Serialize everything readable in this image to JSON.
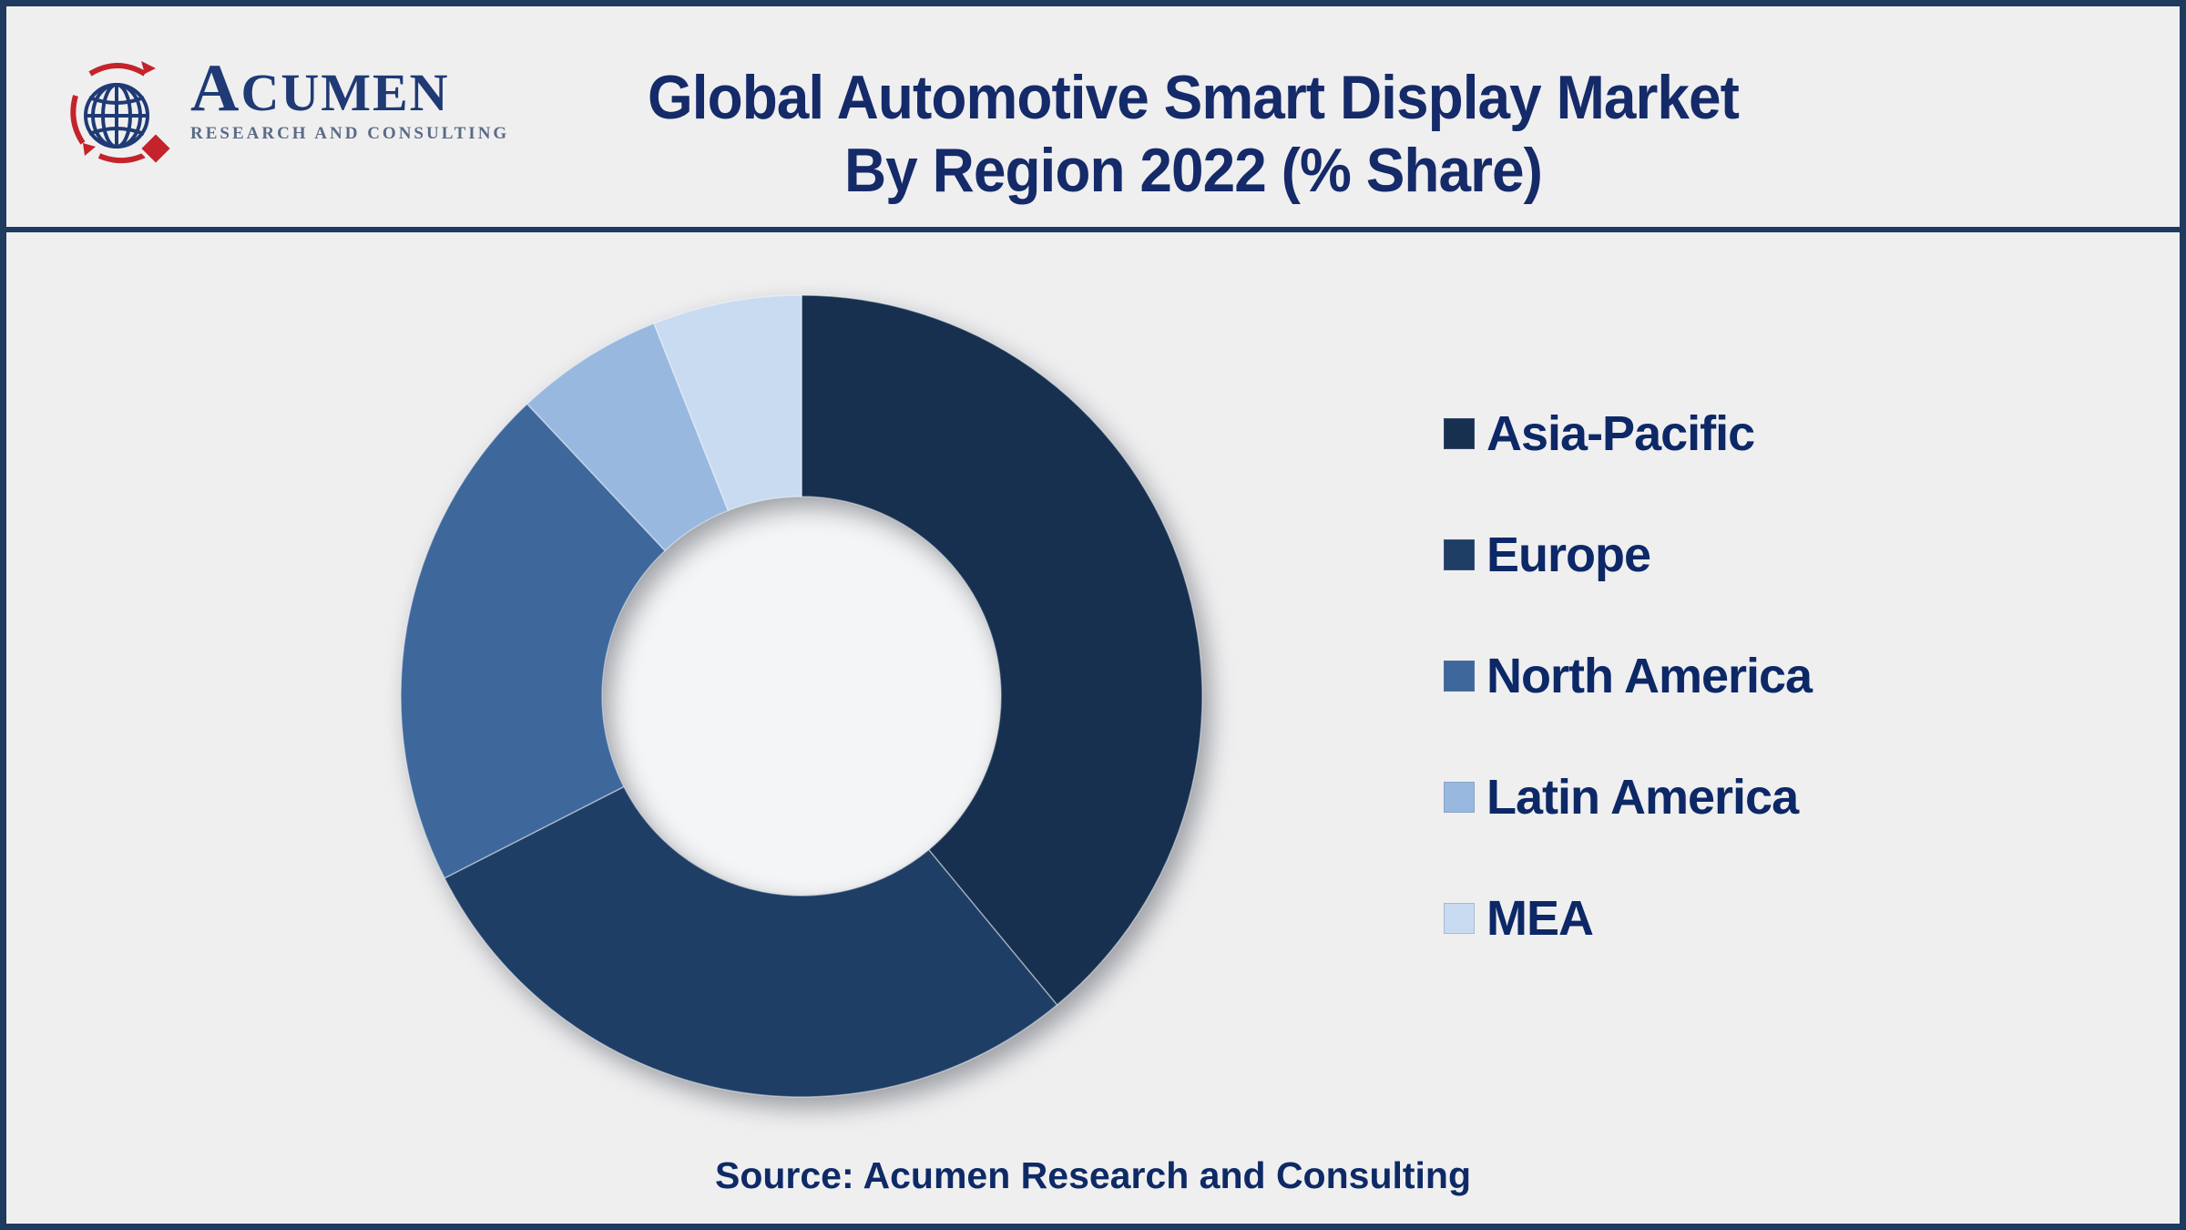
{
  "header": {
    "logo": {
      "brand": "ACUMEN",
      "tagline": "RESEARCH AND CONSULTING"
    },
    "title_line1": "Global Automotive Smart Display Market",
    "title_line2": "By Region 2022 (% Share)"
  },
  "footer": {
    "source": "Source: Acumen Research and Consulting"
  },
  "chart_data": {
    "type": "pie",
    "subtype": "donut",
    "title": "Global Automotive Smart Display Market By Region 2022 (% Share)",
    "labels": [
      "Asia-Pacific",
      "Europe",
      "North America",
      "Latin America",
      "MEA"
    ],
    "values": [
      39,
      28.5,
      20.5,
      6,
      6
    ],
    "unit": "percent-share",
    "colors": [
      "#17304F",
      "#1F3E66",
      "#3E689B",
      "#98B8DF",
      "#C9DBF1"
    ],
    "start_angle_deg": 0,
    "direction": "clockwise",
    "inner_radius_ratio": 0.5,
    "legend_position": "right",
    "data_labels_shown": false
  },
  "style": {
    "background": "#EFEFF0",
    "border_navy": "#1E3A5F",
    "title_navy": "#152A68",
    "legend_text_navy": "#0D2866",
    "hole_fill": "#F4F5F6",
    "logo_navy": "#1F3A75",
    "logo_red": "#C4232B",
    "logo_tagline_grey": "#5A6B85"
  }
}
